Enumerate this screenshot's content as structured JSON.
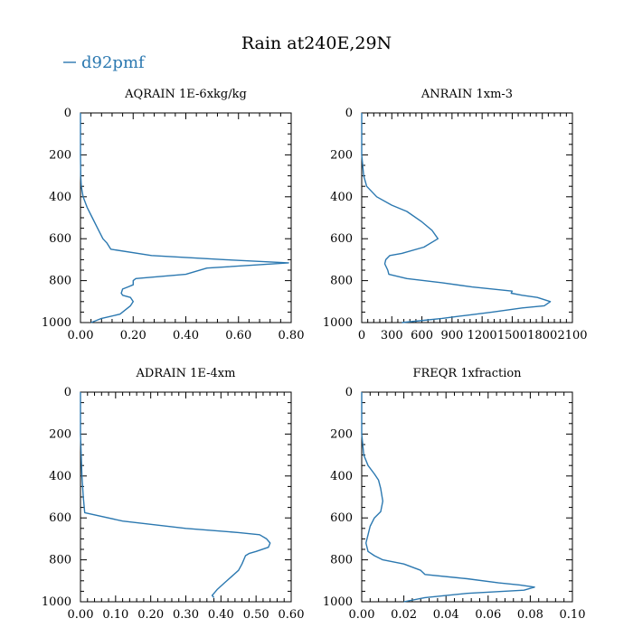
{
  "figure": {
    "title": "Rain at240E,29N",
    "legend_label": "d92pmf",
    "line_color": "#2b78b0"
  },
  "chart_data": [
    {
      "type": "line",
      "title": "AQRAIN  1E-6xkg/kg",
      "xlim": [
        0,
        0.8
      ],
      "ylim": [
        1000,
        0
      ],
      "xticks": [
        "0.00",
        "0.20",
        "0.40",
        "0.60",
        "0.80"
      ],
      "yticks": [
        "0",
        "200",
        "400",
        "600",
        "800",
        "1000"
      ],
      "series": [
        {
          "name": "d92pmf",
          "x": [
            0,
            0,
            0,
            0.001,
            0.003,
            0.01,
            0.025,
            0.045,
            0.065,
            0.085,
            0.1,
            0.115,
            0.27,
            0.55,
            0.79,
            0.48,
            0.4,
            0.21,
            0.2,
            0.2,
            0.18,
            0.16,
            0.155,
            0.16,
            0.19,
            0.2,
            0.19,
            0.17,
            0.15,
            0.08,
            0.04
          ],
          "y": [
            0,
            100,
            200,
            300,
            350,
            400,
            450,
            500,
            550,
            600,
            620,
            650,
            680,
            700,
            715,
            740,
            770,
            790,
            800,
            820,
            830,
            840,
            860,
            870,
            880,
            900,
            920,
            940,
            960,
            980,
            1000
          ]
        }
      ]
    },
    {
      "type": "line",
      "title": "ANRAIN  1xm-3",
      "xlim": [
        0,
        2100
      ],
      "ylim": [
        1000,
        0
      ],
      "xticks": [
        "0",
        "300",
        "600",
        "900",
        "1200",
        "1500",
        "1800",
        "2100"
      ],
      "yticks": [
        "0",
        "200",
        "400",
        "600",
        "800",
        "1000"
      ],
      "series": [
        {
          "name": "d92pmf",
          "x": [
            0,
            0,
            0,
            20,
            50,
            150,
            300,
            450,
            600,
            700,
            760,
            620,
            400,
            280,
            240,
            230,
            260,
            270,
            450,
            800,
            1100,
            1500,
            1490,
            1600,
            1750,
            1880,
            1820,
            1600,
            1300,
            1050,
            800,
            400
          ],
          "y": [
            0,
            100,
            200,
            300,
            350,
            400,
            440,
            470,
            520,
            560,
            600,
            640,
            670,
            680,
            700,
            720,
            750,
            770,
            790,
            810,
            830,
            850,
            860,
            870,
            880,
            900,
            920,
            930,
            950,
            965,
            980,
            1000
          ]
        }
      ]
    },
    {
      "type": "line",
      "title": "ADRAIN  1E-4xm",
      "xlim": [
        0,
        0.6
      ],
      "ylim": [
        1000,
        0
      ],
      "xticks": [
        "0.00",
        "0.10",
        "0.20",
        "0.30",
        "0.40",
        "0.50",
        "0.60"
      ],
      "yticks": [
        "0",
        "200",
        "400",
        "600",
        "800",
        "1000"
      ],
      "series": [
        {
          "name": "d92pmf",
          "x": [
            0,
            0,
            0,
            0.002,
            0.004,
            0.008,
            0.012,
            0.12,
            0.3,
            0.45,
            0.51,
            0.53,
            0.54,
            0.535,
            0.5,
            0.48,
            0.47,
            0.46,
            0.45,
            0.43,
            0.41,
            0.39,
            0.38,
            0.375,
            0.38
          ],
          "y": [
            0,
            100,
            200,
            300,
            400,
            500,
            575,
            615,
            650,
            670,
            680,
            700,
            720,
            740,
            760,
            770,
            780,
            820,
            850,
            880,
            910,
            940,
            960,
            970,
            980
          ]
        }
      ]
    },
    {
      "type": "line",
      "title": "FREQR  1xfraction",
      "xlim": [
        0,
        0.1
      ],
      "ylim": [
        1000,
        0
      ],
      "xticks": [
        "0.00",
        "0.02",
        "0.04",
        "0.06",
        "0.08",
        "0.10"
      ],
      "yticks": [
        "0",
        "200",
        "400",
        "600",
        "800",
        "1000"
      ],
      "series": [
        {
          "name": "d92pmf",
          "x": [
            0,
            0,
            0,
            0.001,
            0.003,
            0.006,
            0.008,
            0.009,
            0.01,
            0.009,
            0.006,
            0.004,
            0.003,
            0.002,
            0.003,
            0.006,
            0.01,
            0.02,
            0.028,
            0.03,
            0.05,
            0.065,
            0.075,
            0.082,
            0.077,
            0.05,
            0.03,
            0.02
          ],
          "y": [
            0,
            100,
            200,
            300,
            350,
            390,
            420,
            460,
            520,
            570,
            600,
            640,
            680,
            720,
            760,
            780,
            800,
            820,
            850,
            870,
            890,
            910,
            920,
            930,
            945,
            960,
            980,
            1000
          ]
        }
      ]
    }
  ]
}
